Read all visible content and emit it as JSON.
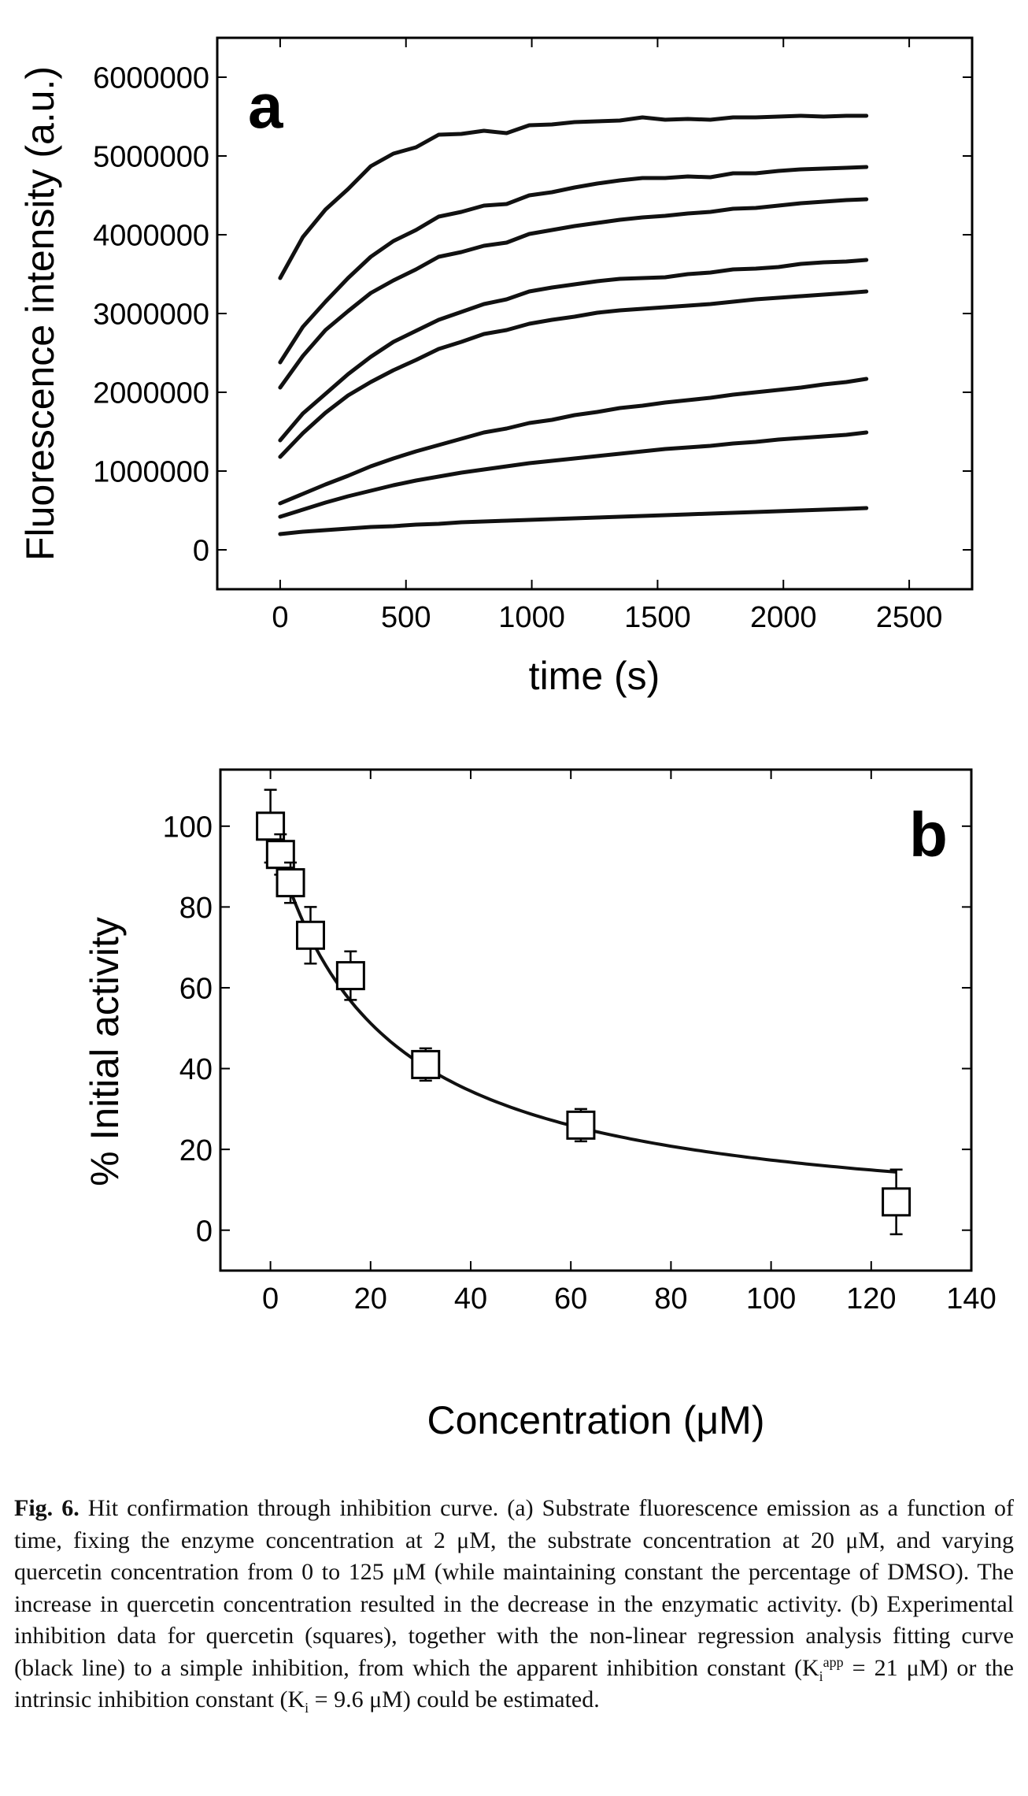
{
  "chart_data": [
    {
      "type": "line",
      "panel_label": "a",
      "xlabel": "time (s)",
      "ylabel": "Fluorescence intensity (a.u.)",
      "xlim": [
        -250,
        2750
      ],
      "ylim": [
        -500000,
        6500000
      ],
      "xticks": [
        0,
        500,
        1000,
        1500,
        2000,
        2500
      ],
      "yticks": [
        0,
        1000000,
        2000000,
        3000000,
        4000000,
        5000000,
        6000000
      ],
      "xtick_labels": [
        "0",
        "500",
        "1000",
        "1500",
        "2000",
        "2500"
      ],
      "ytick_labels": [
        "0",
        "1000000",
        "2000000",
        "3000000",
        "4000000",
        "5000000",
        "6000000"
      ],
      "x": [
        0,
        90,
        180,
        270,
        360,
        450,
        540,
        630,
        720,
        810,
        900,
        990,
        1080,
        1170,
        1260,
        1350,
        1440,
        1530,
        1620,
        1710,
        1800,
        1890,
        1980,
        2070,
        2160,
        2250,
        2330
      ],
      "series": [
        {
          "values": [
            3450000,
            3970000,
            4320000,
            4580000,
            4870000,
            5030000,
            5110000,
            5270000,
            5280000,
            5320000,
            5290000,
            5390000,
            5400000,
            5430000,
            5440000,
            5450000,
            5490000,
            5460000,
            5470000,
            5460000,
            5490000,
            5490000,
            5500000,
            5510000,
            5500000,
            5510000,
            5510000
          ]
        },
        {
          "values": [
            2380000,
            2830000,
            3150000,
            3450000,
            3720000,
            3920000,
            4060000,
            4230000,
            4290000,
            4370000,
            4390000,
            4500000,
            4540000,
            4600000,
            4650000,
            4690000,
            4720000,
            4720000,
            4740000,
            4730000,
            4780000,
            4780000,
            4810000,
            4830000,
            4840000,
            4850000,
            4860000
          ]
        },
        {
          "values": [
            2060000,
            2460000,
            2790000,
            3030000,
            3260000,
            3420000,
            3560000,
            3720000,
            3780000,
            3860000,
            3900000,
            4010000,
            4060000,
            4110000,
            4150000,
            4190000,
            4220000,
            4240000,
            4270000,
            4290000,
            4330000,
            4340000,
            4370000,
            4400000,
            4420000,
            4440000,
            4450000
          ]
        },
        {
          "values": [
            1390000,
            1730000,
            1980000,
            2230000,
            2450000,
            2640000,
            2780000,
            2920000,
            3020000,
            3120000,
            3180000,
            3280000,
            3330000,
            3370000,
            3410000,
            3440000,
            3450000,
            3460000,
            3500000,
            3520000,
            3560000,
            3570000,
            3590000,
            3630000,
            3650000,
            3660000,
            3680000
          ]
        },
        {
          "values": [
            1180000,
            1480000,
            1740000,
            1960000,
            2130000,
            2280000,
            2410000,
            2550000,
            2640000,
            2740000,
            2790000,
            2870000,
            2920000,
            2960000,
            3010000,
            3040000,
            3060000,
            3080000,
            3100000,
            3120000,
            3150000,
            3180000,
            3200000,
            3220000,
            3240000,
            3260000,
            3280000
          ]
        },
        {
          "values": [
            590000,
            710000,
            830000,
            940000,
            1060000,
            1160000,
            1250000,
            1330000,
            1410000,
            1490000,
            1540000,
            1610000,
            1650000,
            1710000,
            1750000,
            1800000,
            1830000,
            1870000,
            1900000,
            1930000,
            1970000,
            2000000,
            2030000,
            2060000,
            2100000,
            2130000,
            2170000
          ]
        },
        {
          "values": [
            420000,
            510000,
            600000,
            680000,
            750000,
            820000,
            880000,
            930000,
            980000,
            1020000,
            1060000,
            1100000,
            1130000,
            1160000,
            1190000,
            1220000,
            1250000,
            1280000,
            1300000,
            1320000,
            1350000,
            1370000,
            1400000,
            1420000,
            1440000,
            1460000,
            1490000
          ]
        },
        {
          "values": [
            200000,
            230000,
            250000,
            270000,
            290000,
            300000,
            320000,
            330000,
            350000,
            360000,
            370000,
            380000,
            390000,
            400000,
            410000,
            420000,
            430000,
            440000,
            450000,
            460000,
            470000,
            480000,
            490000,
            500000,
            510000,
            520000,
            530000
          ]
        }
      ]
    },
    {
      "type": "scatter",
      "panel_label": "b",
      "xlabel": "Concentration (μM)",
      "ylabel": "% Initial activity",
      "xlim": [
        -10,
        140
      ],
      "ylim": [
        -10,
        114
      ],
      "xticks": [
        0,
        20,
        40,
        60,
        80,
        100,
        120,
        140
      ],
      "yticks": [
        0,
        20,
        40,
        60,
        80,
        100
      ],
      "xtick_labels": [
        "0",
        "20",
        "40",
        "60",
        "80",
        "100",
        "120",
        "140"
      ],
      "ytick_labels": [
        "0",
        "20",
        "40",
        "60",
        "80",
        "100"
      ],
      "points": {
        "x": [
          0,
          2,
          4,
          8,
          16,
          31,
          62,
          125
        ],
        "y": [
          100,
          93,
          86,
          73,
          63,
          41,
          26,
          7
        ],
        "error": [
          9,
          5,
          5,
          7,
          6,
          4,
          4,
          8
        ]
      },
      "fit": {
        "model": "simple inhibition",
        "Ki_app_uM": 21,
        "x_range": [
          0,
          125
        ]
      }
    }
  ],
  "caption": {
    "label": "Fig. 6.",
    "text1": " Hit confirmation through inhibition curve. (a) Substrate fluorescence emission as a function of time, fixing the enzyme concentration at 2 μM, the substrate concentration at 20 μM, and varying quercetin concentration from 0 to 125 μM (while maintaining constant the percentage of DMSO). The increase in quercetin concentration resulted in the decrease in the enzymatic activity. (b) Experimental inhibition data for quercetin (squares), together with the non-linear regression analysis fitting curve (black line) to a simple inhibition, from which the apparent inhibition constant (K",
    "sub1": "i",
    "sup1": "app",
    "text2": " = 21 μM) or the intrinsic inhibition constant (K",
    "sub2": "i",
    "text3": " = 9.6 μM) could be estimated."
  }
}
